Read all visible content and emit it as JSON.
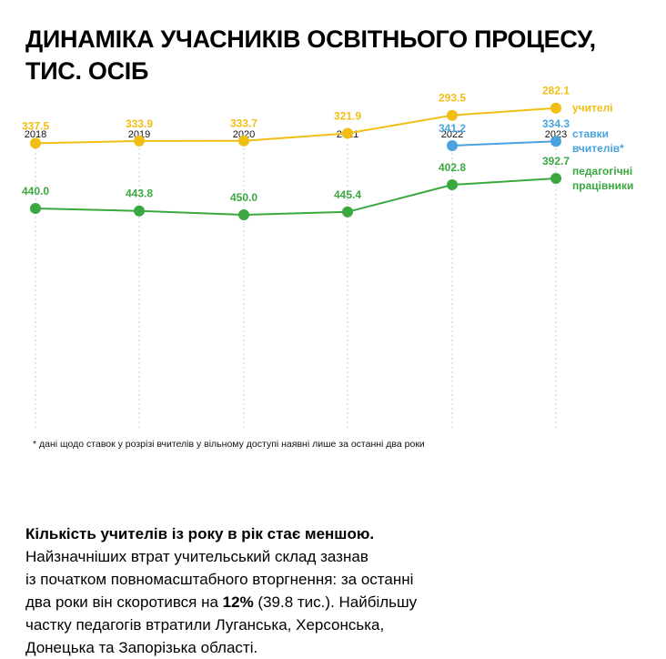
{
  "title_lines": [
    "ДИНАМІКА УЧАСНИКІВ ОСВІТНЬОГО ПРОЦЕСУ,",
    "ТИС. ОСІБ"
  ],
  "footnote": "* дані щодо ставок у розрізі вчителів у вільному доступі наявні лише за останні два роки",
  "text": {
    "lead": "Кількість учителів із року в рік стає меншою.",
    "line1": "Найзначніших втрат учительський склад зазнав",
    "line2": "із початком повномасштабного вторгнення: за останні",
    "line3_pre": "два роки він скоротився на ",
    "line3_bold": "12%",
    "line3_post": " (39.8 тис.). Найбільшу",
    "line4": "частку педагогів втратили Луганська, Херсонська,",
    "line5": "Донецька та Запорізька області."
  },
  "chart_data": {
    "type": "line",
    "x": [
      "2018",
      "2019",
      "2020",
      "2021",
      "2022",
      "2023"
    ],
    "series": [
      {
        "name_lines": [
          "педагогічні",
          "працівники"
        ],
        "color": "#3aa83f",
        "values": [
          440.0,
          443.8,
          450.0,
          445.4,
          402.8,
          392.7
        ],
        "labels": [
          "440.0",
          "443.8",
          "450.0",
          "445.4",
          "402.8",
          "392.7"
        ]
      },
      {
        "name_lines": [
          "ставки",
          "вчителів*"
        ],
        "color": "#4aa3dc",
        "values": [
          null,
          null,
          null,
          null,
          341.2,
          334.3
        ],
        "labels": [
          "",
          "",
          "",
          "",
          "341.2",
          "334.3"
        ]
      },
      {
        "name_lines": [
          "учителі"
        ],
        "color": "#f2be14",
        "values": [
          337.5,
          333.9,
          333.7,
          321.9,
          293.5,
          282.1
        ],
        "labels": [
          "337.5",
          "333.9",
          "333.7",
          "321.9",
          "293.5",
          "282.1"
        ]
      }
    ],
    "grid": "vertical dotted"
  }
}
